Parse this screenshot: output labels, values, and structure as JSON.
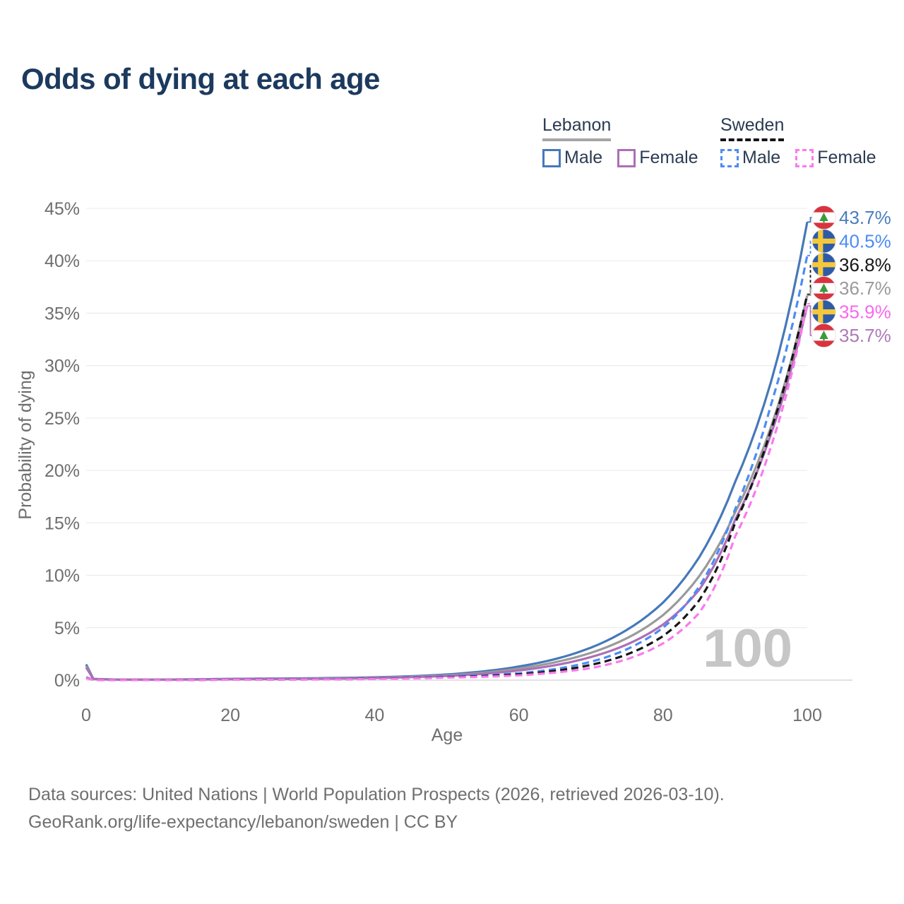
{
  "title": "Odds of dying at each age",
  "legend": {
    "groups": [
      {
        "label": "Lebanon",
        "line_style": "solid",
        "underline_color": "#a6a6a6",
        "items": [
          {
            "label": "Male",
            "color": "#4678b9"
          },
          {
            "label": "Female",
            "color": "#ac6fb6"
          }
        ]
      },
      {
        "label": "Sweden",
        "line_style": "dashed",
        "underline_color": "#141414",
        "items": [
          {
            "label": "Male",
            "color": "#4b8cf5"
          },
          {
            "label": "Female",
            "color": "#fa79ee"
          }
        ]
      }
    ]
  },
  "axes": {
    "x": {
      "label": "Age",
      "ticks": [
        {
          "v": 0,
          "label": "0"
        },
        {
          "v": 20,
          "label": "20"
        },
        {
          "v": 40,
          "label": "40"
        },
        {
          "v": 60,
          "label": "60"
        },
        {
          "v": 80,
          "label": "80"
        },
        {
          "v": 100,
          "label": "100"
        }
      ]
    },
    "y": {
      "label": "Probability of dying",
      "ticks": [
        {
          "v": 0,
          "label": "0%"
        },
        {
          "v": 5,
          "label": "5%"
        },
        {
          "v": 10,
          "label": "10%"
        },
        {
          "v": 15,
          "label": "15%"
        },
        {
          "v": 20,
          "label": "20%"
        },
        {
          "v": 25,
          "label": "25%"
        },
        {
          "v": 30,
          "label": "30%"
        },
        {
          "v": 35,
          "label": "35%"
        },
        {
          "v": 40,
          "label": "40%"
        },
        {
          "v": 45,
          "label": "45%"
        }
      ]
    }
  },
  "watermark": "100",
  "annotations": [
    {
      "series": "Lebanon Male",
      "flag": "lebanon",
      "label": "43.7%",
      "color": "#4a7dbd"
    },
    {
      "series": "Sweden Male",
      "flag": "sweden",
      "label": "40.5%",
      "color": "#4b8cf5"
    },
    {
      "series": "Sweden Total",
      "flag": "sweden",
      "label": "36.8%",
      "color": "#161616"
    },
    {
      "series": "Lebanon Total",
      "flag": "lebanon",
      "label": "36.7%",
      "color": "#9a9a9a"
    },
    {
      "series": "Sweden Female",
      "flag": "sweden",
      "label": "35.9%",
      "color": "#f868ec"
    },
    {
      "series": "Lebanon Female",
      "flag": "lebanon",
      "label": "35.7%",
      "color": "#ad7ab9"
    }
  ],
  "flag_colors": {
    "lebanon": {
      "red": "#d8333f",
      "white": "#ffffff",
      "green": "#3a9b3d"
    },
    "sweden": {
      "blue": "#2e5ba6",
      "yellow": "#f5c83c"
    }
  },
  "footer": {
    "line1": "Data sources: United Nations | World Population Prospects (2026, retrieved 2026-03-10).",
    "line2": "GeoRank.org/life-expectancy/lebanon/sweden | CC BY"
  },
  "chart_data": {
    "type": "line",
    "title": "Odds of dying at each age",
    "xlabel": "Age",
    "ylabel": "Probability of dying",
    "xlim": [
      0,
      100
    ],
    "ylim": [
      0,
      45
    ],
    "grid": "horizontal",
    "legend_position": "top-right",
    "x": [
      0,
      1,
      5,
      10,
      15,
      20,
      25,
      30,
      35,
      40,
      45,
      50,
      55,
      60,
      65,
      70,
      75,
      80,
      85,
      90,
      95,
      100
    ],
    "series": [
      {
        "name": "Lebanon Male",
        "country": "Lebanon",
        "sex": "male",
        "style": "solid",
        "color": "#4678b9",
        "end_label": "43.7%",
        "values": [
          1.5,
          0.12,
          0.05,
          0.05,
          0.08,
          0.12,
          0.15,
          0.17,
          0.21,
          0.27,
          0.37,
          0.54,
          0.83,
          1.3,
          2.0,
          3.1,
          4.8,
          7.4,
          11.7,
          18.9,
          28.5,
          43.7
        ]
      },
      {
        "name": "Sweden Male",
        "country": "Sweden",
        "sex": "male",
        "style": "dashed",
        "color": "#4b8cf5",
        "end_label": "40.5%",
        "values": [
          0.25,
          0.03,
          0.01,
          0.01,
          0.03,
          0.06,
          0.08,
          0.09,
          0.11,
          0.15,
          0.22,
          0.33,
          0.45,
          0.65,
          1.05,
          1.75,
          2.95,
          5.0,
          8.9,
          16.3,
          26.3,
          40.5
        ]
      },
      {
        "name": "Sweden Total",
        "country": "Sweden",
        "sex": "both",
        "style": "dashed",
        "color": "#161616",
        "end_label": "36.8%",
        "values": [
          0.22,
          0.025,
          0.01,
          0.01,
          0.025,
          0.05,
          0.06,
          0.07,
          0.09,
          0.13,
          0.19,
          0.28,
          0.38,
          0.55,
          0.88,
          1.45,
          2.45,
          4.2,
          7.6,
          15.0,
          23.9,
          36.8
        ]
      },
      {
        "name": "Lebanon Total",
        "country": "Lebanon",
        "sex": "both",
        "style": "solid",
        "color": "#9a9a9a",
        "end_label": "36.7%",
        "values": [
          1.35,
          0.11,
          0.04,
          0.04,
          0.07,
          0.1,
          0.12,
          0.14,
          0.18,
          0.23,
          0.32,
          0.46,
          0.7,
          1.1,
          1.7,
          2.6,
          4.0,
          6.2,
          9.9,
          16.0,
          24.2,
          36.7
        ]
      },
      {
        "name": "Sweden Female",
        "country": "Sweden",
        "sex": "female",
        "style": "dashed",
        "color": "#fa79ee",
        "end_label": "35.9%",
        "values": [
          0.2,
          0.02,
          0.01,
          0.01,
          0.02,
          0.04,
          0.05,
          0.06,
          0.08,
          0.11,
          0.16,
          0.24,
          0.32,
          0.45,
          0.72,
          1.15,
          2.0,
          3.5,
          6.4,
          13.7,
          22.3,
          35.9
        ]
      },
      {
        "name": "Lebanon Female",
        "country": "Lebanon",
        "sex": "female",
        "style": "solid",
        "color": "#ac6fb6",
        "end_label": "35.7%",
        "values": [
          1.2,
          0.1,
          0.04,
          0.04,
          0.06,
          0.08,
          0.1,
          0.12,
          0.15,
          0.2,
          0.28,
          0.4,
          0.6,
          0.92,
          1.42,
          2.2,
          3.4,
          5.3,
          8.6,
          15.3,
          23.5,
          35.7
        ]
      }
    ]
  }
}
